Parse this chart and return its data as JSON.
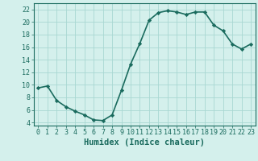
{
  "x": [
    0,
    1,
    2,
    3,
    4,
    5,
    6,
    7,
    8,
    9,
    10,
    11,
    12,
    13,
    14,
    15,
    16,
    17,
    18,
    19,
    20,
    21,
    22,
    23
  ],
  "y": [
    9.5,
    9.8,
    7.5,
    6.5,
    5.8,
    5.2,
    4.4,
    4.3,
    5.2,
    9.1,
    13.3,
    16.6,
    20.3,
    21.5,
    21.8,
    21.6,
    21.2,
    21.6,
    21.6,
    19.5,
    18.6,
    16.5,
    15.7,
    16.5
  ],
  "line_color": "#1a6b5e",
  "marker": "D",
  "marker_size": 2.2,
  "bg_color": "#d4f0ec",
  "grid_color": "#a8d8d2",
  "xlabel": "Humidex (Indice chaleur)",
  "ylim": [
    3.5,
    23.0
  ],
  "xlim": [
    -0.5,
    23.5
  ],
  "yticks": [
    4,
    6,
    8,
    10,
    12,
    14,
    16,
    18,
    20,
    22
  ],
  "xticks": [
    0,
    1,
    2,
    3,
    4,
    5,
    6,
    7,
    8,
    9,
    10,
    11,
    12,
    13,
    14,
    15,
    16,
    17,
    18,
    19,
    20,
    21,
    22,
    23
  ],
  "xlabel_fontsize": 7.5,
  "tick_fontsize": 6.0,
  "line_width": 1.2
}
